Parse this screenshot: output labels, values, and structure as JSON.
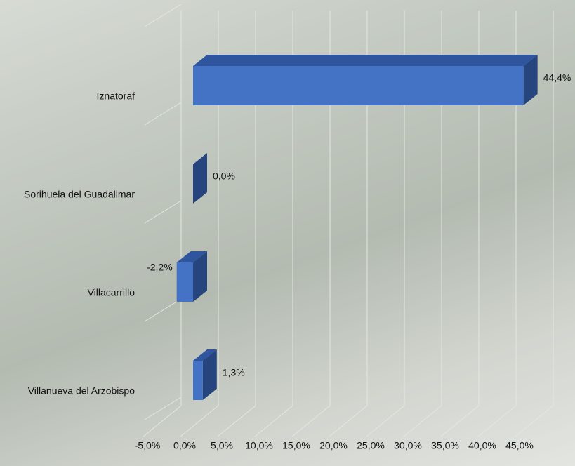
{
  "chart_data": {
    "type": "bar3d",
    "categories": [
      "Iznatoraf",
      "Sorihuela del Guadalimar",
      "Villacarrillo",
      "Villanueva del Arzobispo"
    ],
    "values": [
      44.4,
      0.0,
      -2.2,
      1.3
    ],
    "value_labels": [
      "44,4%",
      "0,0%",
      "-2,2%",
      "1,3%"
    ],
    "color": "#4472c4",
    "xlim": [
      -5,
      45
    ],
    "xticks": [
      {
        "value": -5,
        "label": "-5,0%"
      },
      {
        "value": 0,
        "label": "0,0%"
      },
      {
        "value": 5,
        "label": "5,0%"
      },
      {
        "value": 10,
        "label": "10,0%"
      },
      {
        "value": 15,
        "label": "15,0%"
      },
      {
        "value": 20,
        "label": "20,0%"
      },
      {
        "value": 25,
        "label": "25,0%"
      },
      {
        "value": 30,
        "label": "30,0%"
      },
      {
        "value": 35,
        "label": "35,0%"
      },
      {
        "value": 40,
        "label": "40,0%"
      },
      {
        "value": 45,
        "label": "45,0%"
      }
    ],
    "grid": true
  }
}
